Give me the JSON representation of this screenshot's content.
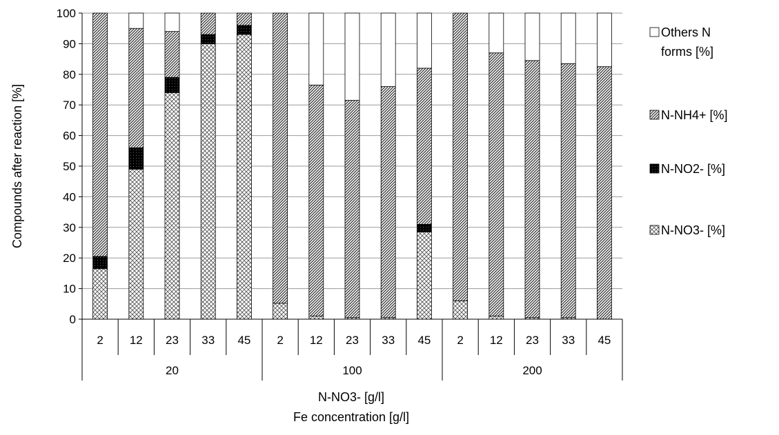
{
  "chart_data": {
    "type": "bar",
    "stacked": true,
    "title": "",
    "ylabel": "Compounds after reaction [%]",
    "xlabel": "N-NO3- [g/l]",
    "xlabel2": "Fe concentration  [g/l]",
    "ylim": [
      0,
      100
    ],
    "yticks": [
      "0",
      "10",
      "20",
      "30",
      "40",
      "50",
      "60",
      "70",
      "80",
      "90",
      "100"
    ],
    "grid": true,
    "legend_position": "right",
    "groups": [
      "20",
      "100",
      "200"
    ],
    "categories": [
      "2",
      "12",
      "23",
      "33",
      "45",
      "2",
      "12",
      "23",
      "33",
      "45",
      "2",
      "12",
      "23",
      "33",
      "45"
    ],
    "series": [
      {
        "name": "N-NO3-  [%]",
        "pattern": "crosshatch",
        "values": [
          16.5,
          49,
          74,
          90,
          93,
          5.2,
          1,
          0.5,
          0.5,
          28.5,
          6,
          1,
          0.5,
          0.5,
          0
        ]
      },
      {
        "name": "N-NO2- [%]",
        "pattern": "solid-black",
        "values": [
          4,
          7,
          5,
          3,
          3,
          0,
          0,
          0,
          0,
          2.5,
          0,
          0,
          0,
          0,
          0
        ]
      },
      {
        "name": "N-NH4+ [%]",
        "pattern": "diagonal",
        "values": [
          79.5,
          39,
          15,
          7,
          4,
          94.8,
          75.5,
          71,
          75.5,
          51,
          94,
          86,
          84,
          83,
          82.5
        ]
      },
      {
        "name": "Others N forms  [%]",
        "pattern": "white",
        "values": [
          0,
          5,
          6,
          0,
          0,
          0,
          23.5,
          28.5,
          24,
          18,
          0,
          13,
          15.5,
          16.5,
          17.5
        ]
      }
    ],
    "legend_lines": [
      [
        "Others N",
        "forms  [%]"
      ],
      [
        "N-NH4+ [%]"
      ],
      [
        "N-NO2- [%]"
      ],
      [
        "N-NO3-  [%]"
      ]
    ]
  }
}
